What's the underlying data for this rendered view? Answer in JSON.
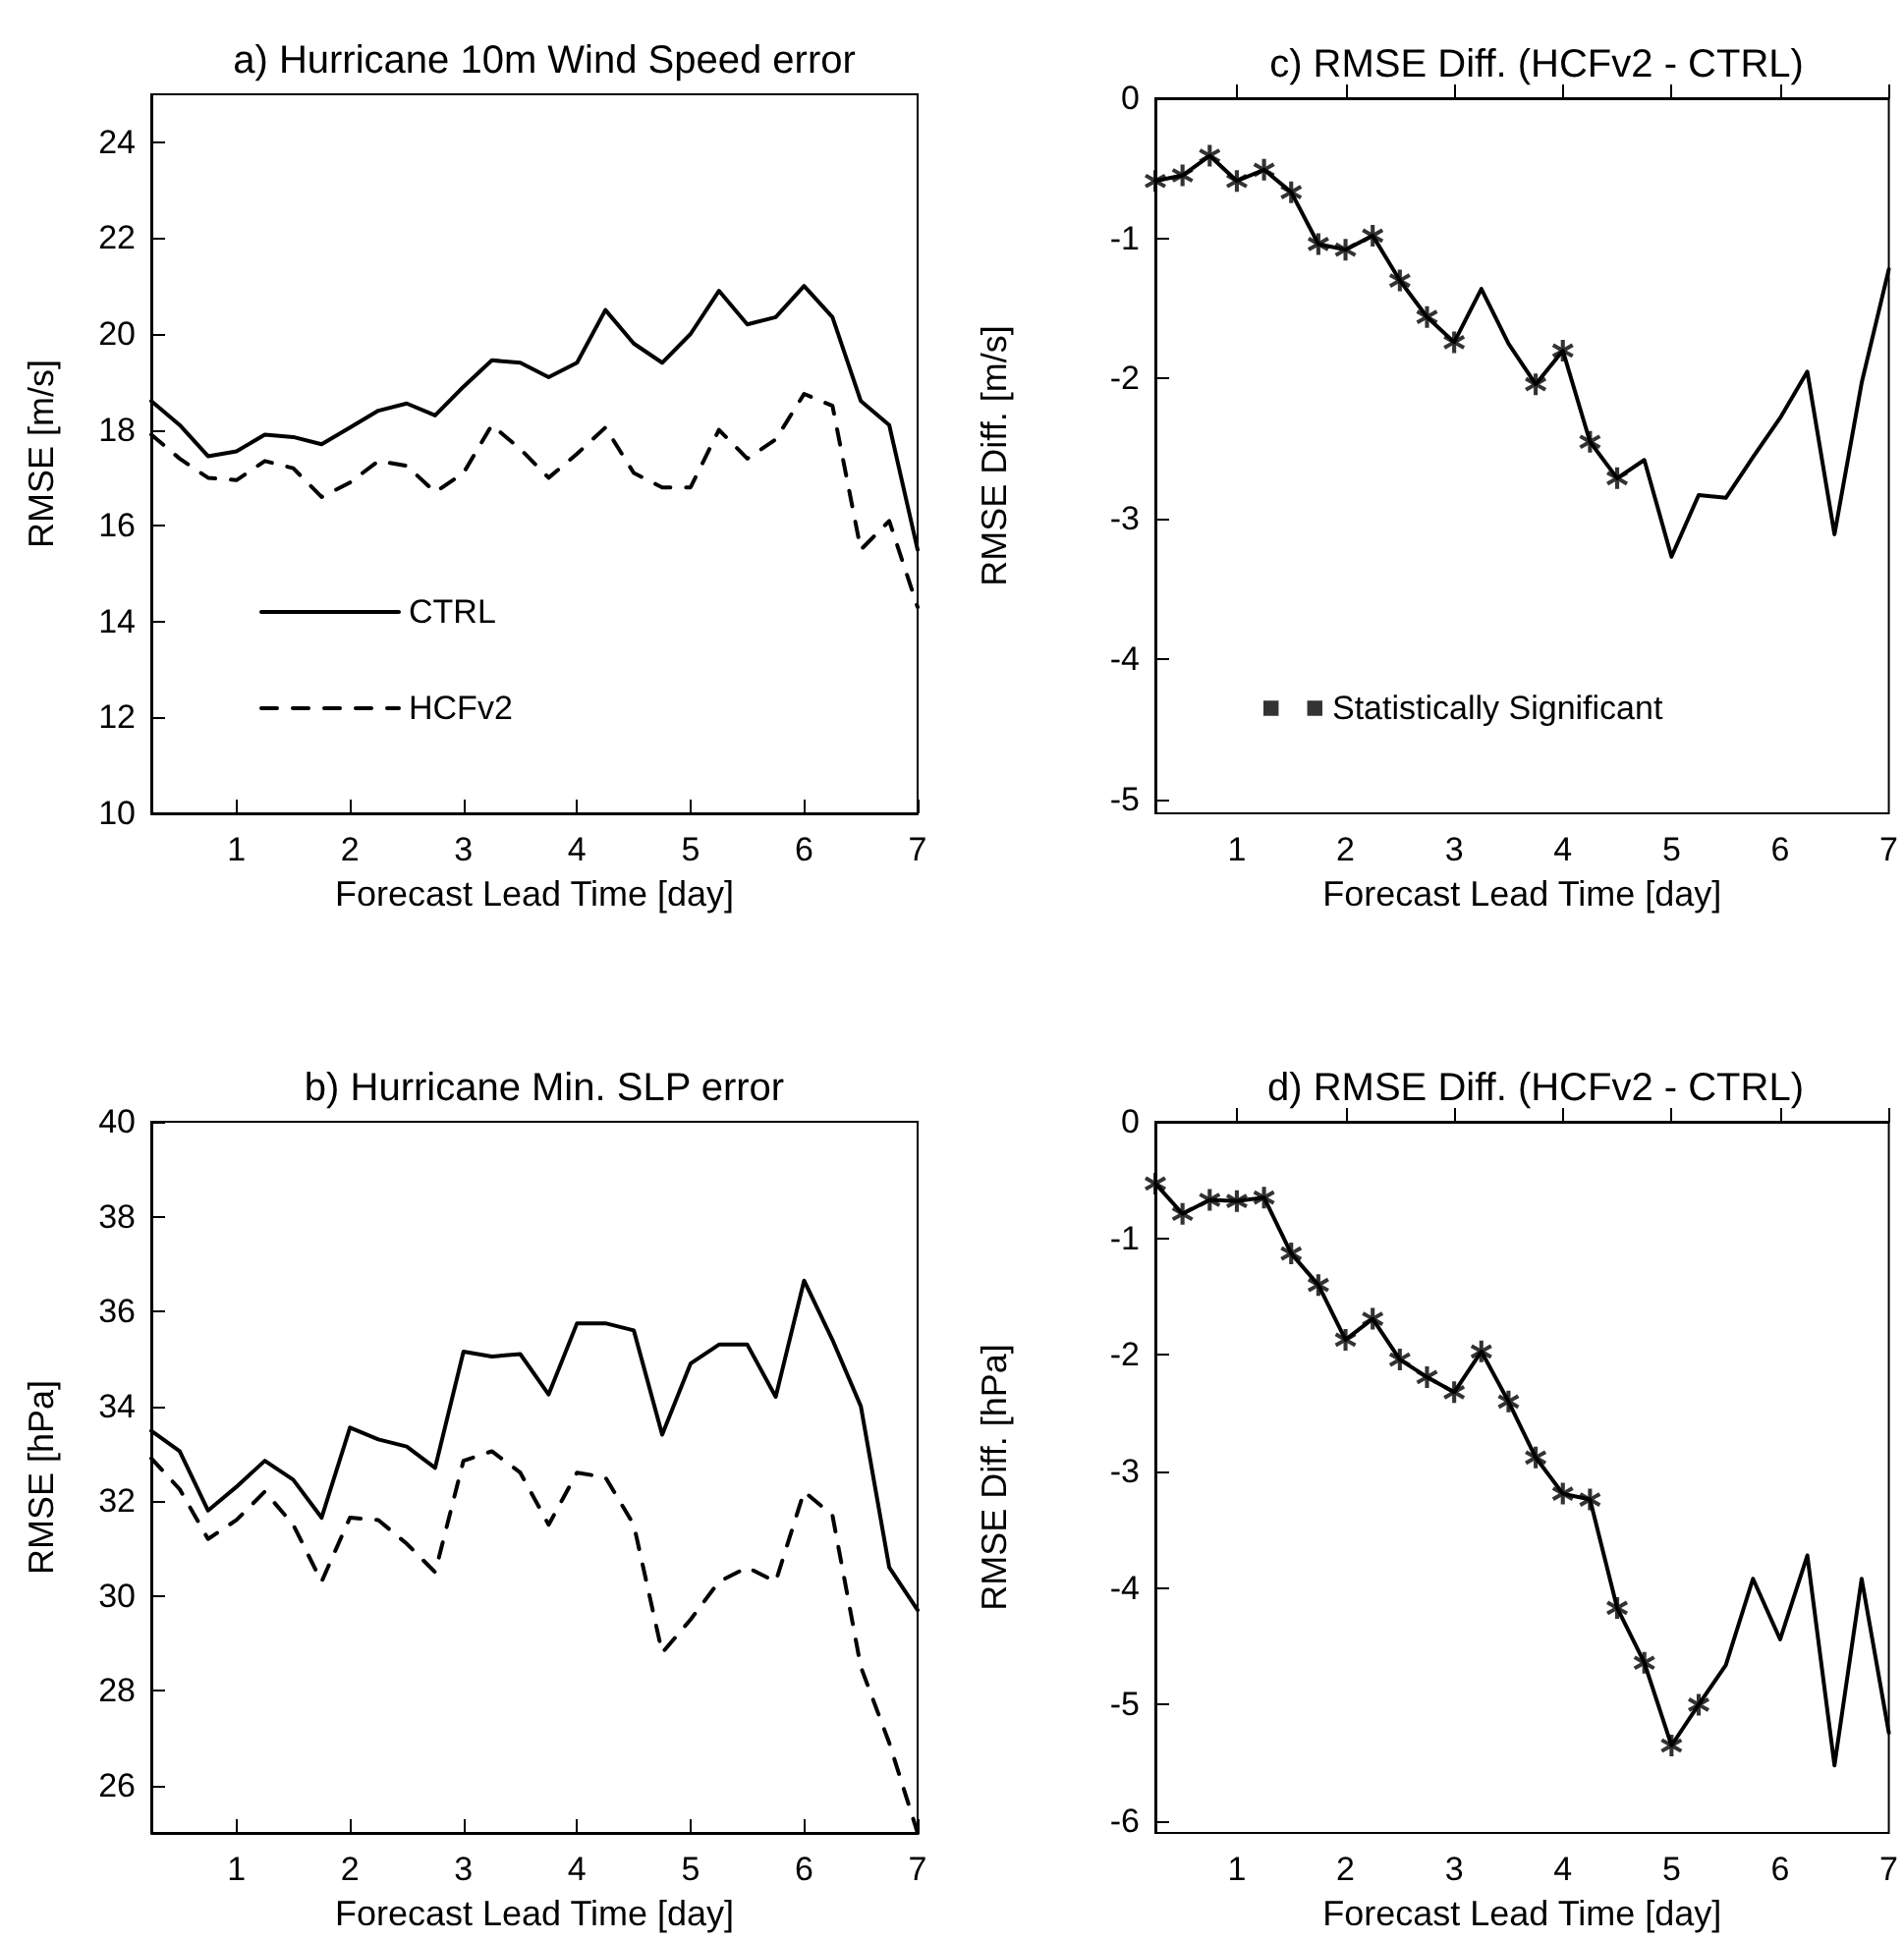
{
  "chart_data": [
    {
      "type": "line",
      "title": "a) Hurricane 10m Wind Speed error",
      "xlabel": "Forecast Lead Time [day]",
      "ylabel": "RMSE [m/s]",
      "x": [
        0.25,
        0.5,
        0.75,
        1,
        1.25,
        1.5,
        1.75,
        2,
        2.25,
        2.5,
        2.75,
        3,
        3.25,
        3.5,
        3.75,
        4,
        4.25,
        4.5,
        4.75,
        5,
        5.25,
        5.5,
        5.75,
        6,
        6.25,
        6.5,
        6.75,
        7
      ],
      "xlim": [
        0.25,
        7
      ],
      "xticks": [
        1,
        2,
        3,
        4,
        5,
        6,
        7
      ],
      "ylim": [
        10,
        25
      ],
      "yticks": [
        10,
        12,
        14,
        16,
        18,
        20,
        22,
        24
      ],
      "legend": "bottom left",
      "series": [
        {
          "name": "CTRL",
          "color": "#000000",
          "line_style": "solid",
          "values": [
            18.6,
            18.1,
            17.45,
            17.55,
            17.9,
            17.85,
            17.7,
            18.05,
            18.4,
            18.55,
            18.3,
            18.9,
            19.45,
            19.4,
            19.1,
            19.4,
            20.5,
            19.8,
            19.4,
            20.0,
            20.9,
            20.2,
            20.35,
            21.0,
            20.35,
            18.6,
            18.1,
            15.5
          ]
        },
        {
          "name": "HCFv2",
          "color": "#000000",
          "line_style": "dashed",
          "values": [
            17.9,
            17.4,
            17.0,
            16.95,
            17.35,
            17.2,
            16.6,
            16.9,
            17.35,
            17.25,
            16.7,
            17.1,
            18.1,
            17.6,
            17.0,
            17.5,
            18.05,
            17.1,
            16.8,
            16.8,
            18.0,
            17.4,
            17.8,
            18.75,
            18.5,
            15.5,
            16.1,
            14.3
          ]
        }
      ]
    },
    {
      "type": "line",
      "title": "c) RMSE Diff. (HCFv2 - CTRL)",
      "xlabel": "Forecast Lead Time [day]",
      "ylabel": "RMSE Diff. [m/s]",
      "x": [
        0.25,
        0.5,
        0.75,
        1,
        1.25,
        1.5,
        1.75,
        2,
        2.25,
        2.5,
        2.75,
        3,
        3.25,
        3.5,
        3.75,
        4,
        4.25,
        4.5,
        4.75,
        5,
        5.25,
        5.5,
        5.75,
        6,
        6.25,
        6.5,
        6.75,
        7
      ],
      "xlim": [
        0.25,
        7
      ],
      "xticks": [
        1,
        2,
        3,
        4,
        5,
        6,
        7
      ],
      "ylim": [
        -5.1,
        0
      ],
      "yticks": [
        -5,
        -4,
        -3,
        -2,
        -1,
        0
      ],
      "legend": "bottom left",
      "series": [
        {
          "color": "#000000",
          "line_style": "solid",
          "values": [
            -0.59,
            -0.55,
            -0.41,
            -0.59,
            -0.51,
            -0.67,
            -1.04,
            -1.08,
            -0.98,
            -1.3,
            -1.56,
            -1.74,
            -1.36,
            -1.75,
            -2.04,
            -1.8,
            -2.45,
            -2.71,
            -2.58,
            -3.27,
            -2.83,
            -2.85,
            -2.56,
            -2.28,
            -1.95,
            -3.11,
            -2.03,
            -1.22
          ]
        },
        {
          "name": "Statistically Significant",
          "type": "scatter",
          "marker": "star",
          "color": "#000000",
          "values": [
            -0.59,
            -0.55,
            -0.41,
            -0.59,
            -0.51,
            -0.67,
            -1.04,
            -1.08,
            -0.98,
            -1.3,
            -1.56,
            -1.74,
            null,
            null,
            -2.04,
            -1.8,
            -2.45,
            -2.71,
            null,
            null,
            null,
            null,
            null,
            null,
            null,
            null,
            null,
            null
          ]
        }
      ]
    },
    {
      "type": "line",
      "title": "b) Hurricane Min. SLP error",
      "xlabel": "Forecast Lead Time [day]",
      "ylabel": "RMSE [hPa]",
      "x": [
        0.25,
        0.5,
        0.75,
        1,
        1.25,
        1.5,
        1.75,
        2,
        2.25,
        2.5,
        2.75,
        3,
        3.25,
        3.5,
        3.75,
        4,
        4.25,
        4.5,
        4.75,
        5,
        5.25,
        5.5,
        5.75,
        6,
        6.25,
        6.5,
        6.75,
        7
      ],
      "xlim": [
        0.25,
        7
      ],
      "xticks": [
        1,
        2,
        3,
        4,
        5,
        6,
        7
      ],
      "ylim": [
        25,
        40
      ],
      "yticks": [
        26,
        28,
        30,
        32,
        34,
        36,
        38,
        40
      ],
      "series": [
        {
          "color": "#000000",
          "line_style": "solid",
          "values": [
            33.48,
            33.05,
            31.8,
            32.3,
            32.85,
            32.45,
            31.65,
            33.55,
            33.3,
            33.15,
            32.7,
            35.15,
            35.05,
            35.1,
            34.25,
            35.75,
            35.75,
            35.6,
            33.4,
            34.9,
            35.3,
            35.3,
            34.2,
            36.65,
            35.4,
            34.0,
            30.6,
            29.7
          ]
        },
        {
          "color": "#000000",
          "line_style": "dashed",
          "values": [
            32.9,
            32.25,
            31.2,
            31.6,
            32.2,
            31.5,
            30.3,
            31.65,
            31.6,
            31.1,
            30.5,
            32.85,
            33.05,
            32.6,
            31.5,
            32.6,
            32.5,
            31.5,
            28.8,
            29.5,
            30.3,
            30.6,
            30.3,
            32.2,
            31.7,
            28.5,
            26.9,
            25.0
          ]
        }
      ]
    },
    {
      "type": "line",
      "title": "d) RMSE Diff. (HCFv2 - CTRL)",
      "xlabel": "Forecast Lead Time [day]",
      "ylabel": "RMSE Diff. [hPa]",
      "x": [
        0.25,
        0.5,
        0.75,
        1,
        1.25,
        1.5,
        1.75,
        2,
        2.25,
        2.5,
        2.75,
        3,
        3.25,
        3.5,
        3.75,
        4,
        4.25,
        4.5,
        4.75,
        5,
        5.25,
        5.5,
        5.75,
        6,
        6.25,
        6.5,
        6.75,
        7
      ],
      "xlim": [
        0.25,
        7
      ],
      "xticks": [
        1,
        2,
        3,
        4,
        5,
        6,
        7
      ],
      "ylim": [
        -6.1,
        0
      ],
      "yticks": [
        -6,
        -5,
        -4,
        -3,
        -2,
        -1,
        0
      ],
      "series": [
        {
          "color": "#000000",
          "line_style": "solid",
          "values": [
            -0.53,
            -0.79,
            -0.67,
            -0.68,
            -0.65,
            -1.13,
            -1.4,
            -1.87,
            -1.69,
            -2.04,
            -2.19,
            -2.32,
            -1.97,
            -2.4,
            -2.88,
            -3.19,
            -3.24,
            -4.17,
            -4.64,
            -5.35,
            -5.0,
            -4.66,
            -3.92,
            -4.44,
            -3.72,
            -5.52,
            -3.92,
            -5.24
          ]
        },
        {
          "type": "scatter",
          "marker": "star",
          "color": "#000000",
          "values": [
            -0.53,
            -0.79,
            -0.67,
            -0.68,
            -0.65,
            -1.13,
            -1.4,
            -1.87,
            -1.69,
            -2.04,
            -2.19,
            -2.32,
            -1.97,
            -2.4,
            -2.88,
            -3.19,
            -3.24,
            -4.17,
            -4.64,
            -5.35,
            -5.0,
            null,
            null,
            null,
            null,
            null,
            null,
            null
          ]
        }
      ]
    }
  ]
}
